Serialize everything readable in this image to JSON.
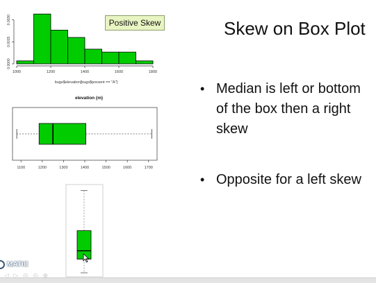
{
  "slide": {
    "title": "Skew on Box Plot",
    "bullets": [
      "Median is left or bottom of the box then a right skew",
      "Opposite for a left skew"
    ],
    "bullet_glyph": "•"
  },
  "histogram": {
    "label": "Positive Skew",
    "y_ticks": [
      "0.0000",
      "0.0015",
      "0.0030"
    ],
    "x_ticks": [
      "1000",
      "1200",
      "1400",
      "1600",
      "1800"
    ],
    "x_label": "bugs$elevation[bugs$present == \"A\"]",
    "fill_color": "#00cc00"
  },
  "horizontal_boxplot": {
    "title": "elevation (m)",
    "x_ticks": [
      "1100",
      "1200",
      "1300",
      "1400",
      "1500",
      "1600",
      "1700"
    ],
    "fill_color": "#00cc00"
  },
  "vertical_boxplot": {
    "fill_color": "#00cc00"
  },
  "watermark": {
    "logo_text": "MATIC",
    "controls": "◁ ▷ ◎ ◎ ⊕"
  },
  "chart_data": [
    {
      "type": "bar",
      "title": "",
      "xlabel": "bugs$elevation[bugs$present == \"A\"]",
      "ylabel": "",
      "bin_edges": [
        1000,
        1100,
        1200,
        1300,
        1400,
        1500,
        1600,
        1700,
        1800
      ],
      "values": [
        0.0002,
        0.0034,
        0.0023,
        0.0018,
        0.001,
        0.0008,
        0.0008,
        0.0002
      ],
      "ylim": [
        0,
        0.0036
      ],
      "xlim": [
        1000,
        1800
      ],
      "y_ticks": [
        0.0,
        0.0015,
        0.003
      ],
      "x_ticks": [
        1000,
        1200,
        1400,
        1600,
        1800
      ],
      "grid": false,
      "annotation": "Positive Skew"
    },
    {
      "type": "box",
      "orientation": "horizontal",
      "title": "elevation (m)",
      "xlim": [
        1060,
        1740
      ],
      "x_ticks": [
        1100,
        1200,
        1300,
        1400,
        1500,
        1600,
        1700
      ],
      "min": 1080,
      "q1": 1185,
      "median": 1250,
      "q3": 1405,
      "max": 1715
    },
    {
      "type": "box",
      "orientation": "vertical",
      "min": 1080,
      "q1": 1185,
      "median": 1250,
      "q3": 1405,
      "max": 1715,
      "ylim": [
        1060,
        1740
      ]
    }
  ]
}
